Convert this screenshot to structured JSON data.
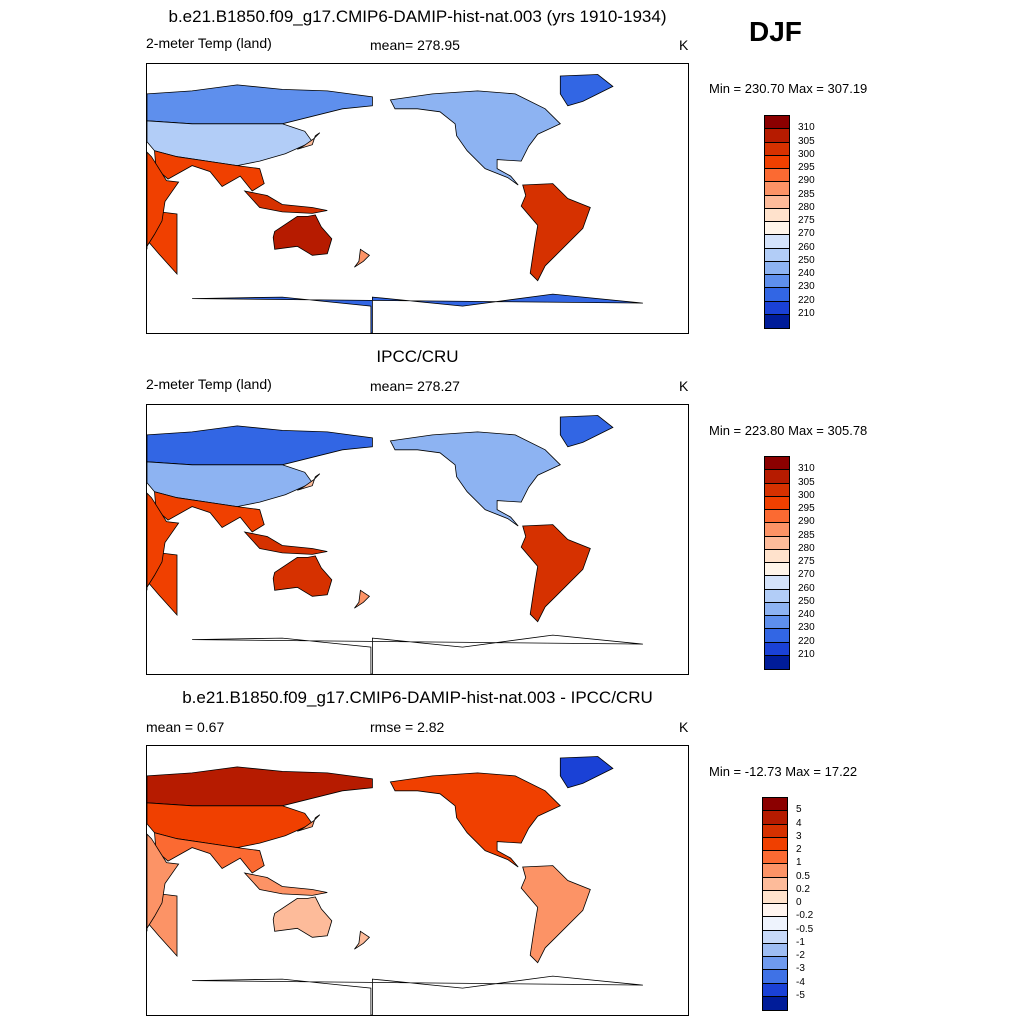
{
  "season": "DJF",
  "panels": [
    {
      "title": "b.e21.B1850.f09_g17.CMIP6-DAMIP-hist-nat.003 (yrs 1910-1934)",
      "left_label": "2-meter Temp (land)",
      "center_label": "mean= 278.95",
      "unit": "K",
      "minmax": "Min = 230.70 Max = 307.19",
      "field": "model",
      "colorbar": {
        "labels": [
          "310",
          "305",
          "300",
          "295",
          "290",
          "285",
          "280",
          "275",
          "270",
          "260",
          "250",
          "240",
          "230",
          "220",
          "210"
        ],
        "colors": [
          "#8b0000",
          "#b61b00",
          "#d63100",
          "#f04000",
          "#fb6a32",
          "#fc9366",
          "#fdbb9a",
          "#ffe2cc",
          "#fff5ea",
          "#d4e3fb",
          "#b2cdf7",
          "#8db3f2",
          "#5e8fed",
          "#3266e4",
          "#1a41d6",
          "#001c99"
        ]
      }
    },
    {
      "title": "IPCC/CRU",
      "left_label": "2-meter Temp (land)",
      "center_label": "mean= 278.27",
      "unit": "K",
      "minmax": "Min = 223.80 Max = 305.78",
      "field": "obs",
      "colorbar": {
        "labels": [
          "310",
          "305",
          "300",
          "295",
          "290",
          "285",
          "280",
          "275",
          "270",
          "260",
          "250",
          "240",
          "230",
          "220",
          "210"
        ],
        "colors": [
          "#8b0000",
          "#b61b00",
          "#d63100",
          "#f04000",
          "#fb6a32",
          "#fc9366",
          "#fdbb9a",
          "#ffe2cc",
          "#fff5ea",
          "#d4e3fb",
          "#b2cdf7",
          "#8db3f2",
          "#5e8fed",
          "#3266e4",
          "#1a41d6",
          "#001c99"
        ]
      }
    },
    {
      "title": "b.e21.B1850.f09_g17.CMIP6-DAMIP-hist-nat.003 - IPCC/CRU",
      "left_label": "mean =   0.67",
      "center_label": "rmse =   2.82",
      "unit": "K",
      "minmax": "Min = -12.73 Max =  17.22",
      "field": "diff",
      "colorbar": {
        "labels": [
          "5",
          "4",
          "3",
          "2",
          "1",
          "0.5",
          "0.2",
          "0",
          "-0.2",
          "-0.5",
          "-1",
          "-2",
          "-3",
          "-4",
          "-5"
        ],
        "colors": [
          "#8b0000",
          "#b61b00",
          "#d63100",
          "#f04000",
          "#fb6a32",
          "#fc9366",
          "#fdbb9a",
          "#ffe2cc",
          "#fff5f0",
          "#eef3fd",
          "#c7d9f8",
          "#9ebdf3",
          "#6f9aee",
          "#3f72e6",
          "#1a41d6",
          "#001c99"
        ]
      }
    }
  ]
}
